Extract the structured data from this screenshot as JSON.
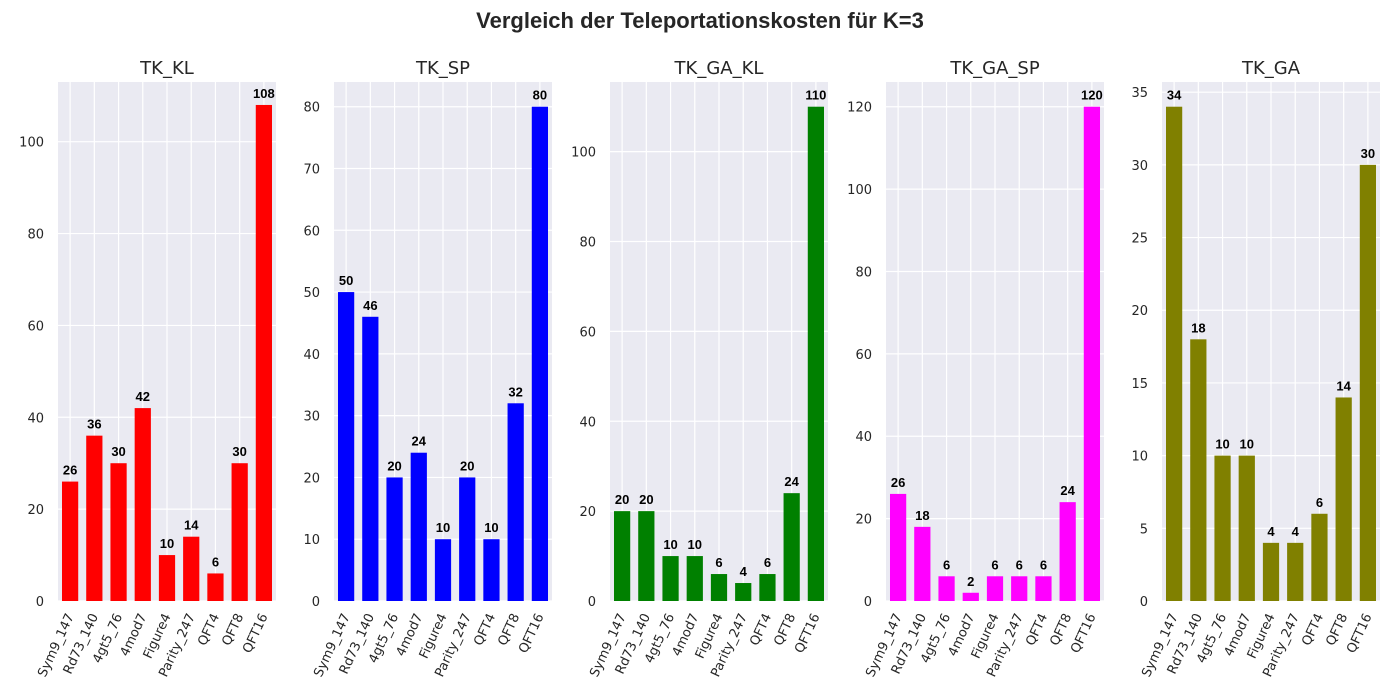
{
  "figure": {
    "title": "Vergleich der Teleportationskosten für K=3"
  },
  "chart_data": [
    {
      "type": "bar",
      "title": "TK_KL",
      "color": "#ff0000",
      "categories": [
        "Sym9_147",
        "Rd73_140",
        "4gt5_76",
        "4mod7",
        "Figure4",
        "Parity_247",
        "QFT4",
        "QFT8",
        "QFT16"
      ],
      "values": [
        26,
        36,
        30,
        42,
        10,
        14,
        6,
        30,
        108
      ],
      "ylim": [
        0,
        113
      ],
      "yticks": [
        0,
        20,
        40,
        60,
        80,
        100
      ],
      "grid": true
    },
    {
      "type": "bar",
      "title": "TK_SP",
      "color": "#0000ff",
      "categories": [
        "Sym9_147",
        "Rd73_140",
        "4gt5_76",
        "4mod7",
        "Figure4",
        "Parity_247",
        "QFT4",
        "QFT8",
        "QFT16"
      ],
      "values": [
        50,
        46,
        20,
        24,
        10,
        20,
        10,
        32,
        80
      ],
      "ylim": [
        0,
        84
      ],
      "yticks": [
        0,
        10,
        20,
        30,
        40,
        50,
        60,
        70,
        80
      ],
      "grid": true
    },
    {
      "type": "bar",
      "title": "TK_GA_KL",
      "color": "#008000",
      "categories": [
        "Sym9_147",
        "Rd73_140",
        "4gt5_76",
        "4mod7",
        "Figure4",
        "Parity_247",
        "QFT4",
        "QFT8",
        "QFT16"
      ],
      "values": [
        20,
        20,
        10,
        10,
        6,
        4,
        6,
        24,
        110
      ],
      "ylim": [
        0,
        115.5
      ],
      "yticks": [
        0,
        20,
        40,
        60,
        80,
        100
      ],
      "grid": true
    },
    {
      "type": "bar",
      "title": "TK_GA_SP",
      "color": "#ff00ff",
      "categories": [
        "Sym9_147",
        "Rd73_140",
        "4gt5_76",
        "4mod7",
        "Figure4",
        "Parity_247",
        "QFT4",
        "QFT8",
        "QFT16"
      ],
      "values": [
        26,
        18,
        6,
        2,
        6,
        6,
        6,
        24,
        120
      ],
      "ylim": [
        0,
        126
      ],
      "yticks": [
        0,
        20,
        40,
        60,
        80,
        100,
        120
      ],
      "grid": true
    },
    {
      "type": "bar",
      "title": "TK_GA",
      "color": "#808000",
      "categories": [
        "Sym9_147",
        "Rd73_140",
        "4gt5_76",
        "4mod7",
        "Figure4",
        "Parity_247",
        "QFT4",
        "QFT8",
        "QFT16"
      ],
      "values": [
        34,
        18,
        10,
        10,
        4,
        4,
        6,
        14,
        30
      ],
      "ylim": [
        0,
        35.7
      ],
      "yticks": [
        0,
        5,
        10,
        15,
        20,
        25,
        30,
        35
      ],
      "grid": true
    }
  ]
}
